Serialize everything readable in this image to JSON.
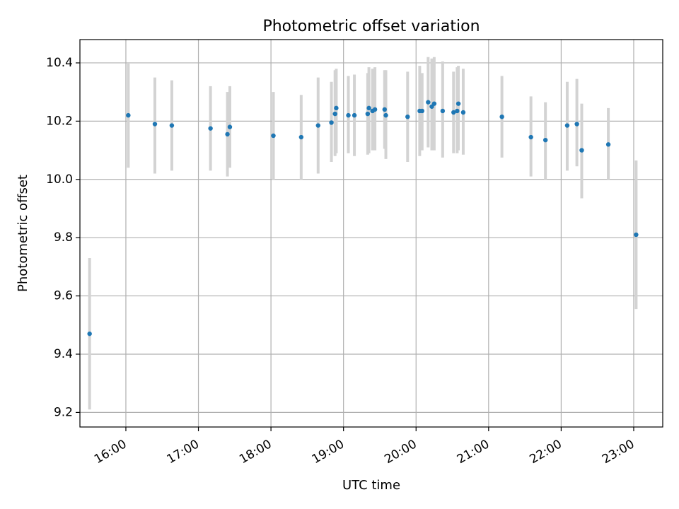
{
  "chart_data": {
    "type": "scatter",
    "title": "Photometric offset variation",
    "xlabel": "UTC time",
    "ylabel": "Photometric offset",
    "x_axis_type": "time",
    "xlim": [
      "15:22",
      "23:24"
    ],
    "ylim": [
      9.15,
      10.48
    ],
    "yticks": [
      9.2,
      9.4,
      9.6,
      9.8,
      10.0,
      10.2,
      10.4
    ],
    "ytick_labels": [
      "9.2",
      "9.4",
      "9.6",
      "9.8",
      "10.0",
      "10.2",
      "10.4"
    ],
    "xticks": [
      "16:00",
      "17:00",
      "18:00",
      "19:00",
      "20:00",
      "21:00",
      "22:00",
      "23:00"
    ],
    "grid": true,
    "legend": "none",
    "point_color": "#1f77b4",
    "errorbar_color": "#d3d3d3",
    "series": [
      {
        "points": [
          {
            "x": "15:30",
            "y": 9.47,
            "ylow": 9.21,
            "yhigh": 9.73
          },
          {
            "x": "16:02",
            "y": 10.22,
            "ylow": 10.04,
            "yhigh": 10.4
          },
          {
            "x": "16:24",
            "y": 10.19,
            "ylow": 10.02,
            "yhigh": 10.35
          },
          {
            "x": "16:38",
            "y": 10.185,
            "ylow": 10.03,
            "yhigh": 10.34
          },
          {
            "x": "17:10",
            "y": 10.175,
            "ylow": 10.03,
            "yhigh": 10.32
          },
          {
            "x": "17:24",
            "y": 10.155,
            "ylow": 10.01,
            "yhigh": 10.3
          },
          {
            "x": "17:26",
            "y": 10.18,
            "ylow": 10.04,
            "yhigh": 10.32
          },
          {
            "x": "18:02",
            "y": 10.15,
            "ylow": 10.0,
            "yhigh": 10.3
          },
          {
            "x": "18:25",
            "y": 10.145,
            "ylow": 10.0,
            "yhigh": 10.29
          },
          {
            "x": "18:39",
            "y": 10.185,
            "ylow": 10.02,
            "yhigh": 10.35
          },
          {
            "x": "18:50",
            "y": 10.195,
            "ylow": 10.06,
            "yhigh": 10.335
          },
          {
            "x": "18:53",
            "y": 10.225,
            "ylow": 10.08,
            "yhigh": 10.375
          },
          {
            "x": "18:54",
            "y": 10.245,
            "ylow": 10.09,
            "yhigh": 10.38
          },
          {
            "x": "19:04",
            "y": 10.22,
            "ylow": 10.09,
            "yhigh": 10.355
          },
          {
            "x": "19:09",
            "y": 10.22,
            "ylow": 10.08,
            "yhigh": 10.36
          },
          {
            "x": "19:20",
            "y": 10.225,
            "ylow": 10.085,
            "yhigh": 10.365
          },
          {
            "x": "19:21",
            "y": 10.245,
            "ylow": 10.09,
            "yhigh": 10.385
          },
          {
            "x": "19:24",
            "y": 10.235,
            "ylow": 10.1,
            "yhigh": 10.38
          },
          {
            "x": "19:26",
            "y": 10.24,
            "ylow": 10.1,
            "yhigh": 10.385
          },
          {
            "x": "19:34",
            "y": 10.24,
            "ylow": 10.105,
            "yhigh": 10.375
          },
          {
            "x": "19:35",
            "y": 10.22,
            "ylow": 10.07,
            "yhigh": 10.375
          },
          {
            "x": "19:53",
            "y": 10.215,
            "ylow": 10.06,
            "yhigh": 10.37
          },
          {
            "x": "20:03",
            "y": 10.235,
            "ylow": 10.08,
            "yhigh": 10.39
          },
          {
            "x": "20:05",
            "y": 10.235,
            "ylow": 10.1,
            "yhigh": 10.365
          },
          {
            "x": "20:10",
            "y": 10.265,
            "ylow": 10.11,
            "yhigh": 10.42
          },
          {
            "x": "20:13",
            "y": 10.25,
            "ylow": 10.1,
            "yhigh": 10.415
          },
          {
            "x": "20:15",
            "y": 10.26,
            "ylow": 10.1,
            "yhigh": 10.42
          },
          {
            "x": "20:22",
            "y": 10.235,
            "ylow": 10.075,
            "yhigh": 10.405
          },
          {
            "x": "20:31",
            "y": 10.23,
            "ylow": 10.09,
            "yhigh": 10.37
          },
          {
            "x": "20:34",
            "y": 10.235,
            "ylow": 10.09,
            "yhigh": 10.385
          },
          {
            "x": "20:35",
            "y": 10.26,
            "ylow": 10.1,
            "yhigh": 10.39
          },
          {
            "x": "20:39",
            "y": 10.23,
            "ylow": 10.085,
            "yhigh": 10.38
          },
          {
            "x": "21:11",
            "y": 10.215,
            "ylow": 10.075,
            "yhigh": 10.355
          },
          {
            "x": "21:35",
            "y": 10.145,
            "ylow": 10.01,
            "yhigh": 10.285
          },
          {
            "x": "21:47",
            "y": 10.135,
            "ylow": 10.0,
            "yhigh": 10.265
          },
          {
            "x": "22:05",
            "y": 10.185,
            "ylow": 10.03,
            "yhigh": 10.335
          },
          {
            "x": "22:13",
            "y": 10.19,
            "ylow": 10.045,
            "yhigh": 10.345
          },
          {
            "x": "22:17",
            "y": 10.1,
            "ylow": 9.935,
            "yhigh": 10.26
          },
          {
            "x": "22:39",
            "y": 10.12,
            "ylow": 10.0,
            "yhigh": 10.245
          },
          {
            "x": "23:02",
            "y": 9.81,
            "ylow": 9.555,
            "yhigh": 10.065
          }
        ]
      }
    ]
  }
}
